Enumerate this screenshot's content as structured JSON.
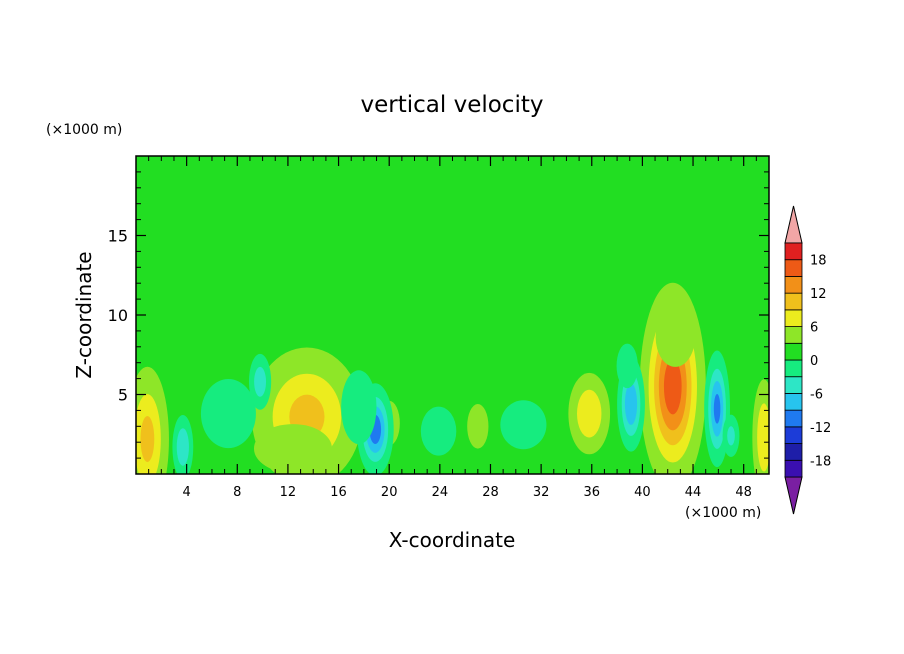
{
  "chart_data": {
    "type": "heatmap",
    "title": "vertical velocity",
    "xlabel": "X-coordinate",
    "ylabel": "Z-coordinate",
    "x_unit": "(×1000 m)",
    "y_unit": "(×1000 m)",
    "xlim": [
      0,
      50
    ],
    "ylim": [
      0,
      20
    ],
    "x_ticks": [
      4,
      8,
      12,
      16,
      20,
      24,
      28,
      32,
      36,
      40,
      44,
      48
    ],
    "x_tick_labels": [
      "4",
      "8",
      "12",
      "16",
      "20",
      "24",
      "28",
      "32",
      "36",
      "40",
      "44",
      "48"
    ],
    "y_ticks": [
      5,
      10,
      15
    ],
    "y_tick_labels": [
      "5",
      "10",
      "15"
    ],
    "colorbar": {
      "levels": [
        -21,
        -18,
        -15,
        -12,
        -9,
        -6,
        -3,
        0,
        3,
        6,
        9,
        12,
        15,
        18,
        21
      ],
      "tick_values": [
        -18,
        -12,
        -6,
        0,
        6,
        12,
        18
      ],
      "tick_labels": [
        "-18",
        "-12",
        "-6",
        "0",
        "6",
        "12",
        "18"
      ],
      "colors": [
        "#7a1fa2",
        "#3a0fb0",
        "#1e1ea8",
        "#1c3cd8",
        "#1f7af0",
        "#27c4ee",
        "#2de6c6",
        "#16ec7f",
        "#22de22",
        "#8ee628",
        "#ecec1e",
        "#f0c01c",
        "#f29018",
        "#ee5a16",
        "#e02020",
        "#f2a6a6"
      ],
      "extend": "both"
    },
    "background_value": 1,
    "features": [
      {
        "x": 0.9,
        "z": 2.2,
        "value": 9,
        "sx": 0.9,
        "sz": 2.4
      },
      {
        "x": 13.5,
        "z": 3.6,
        "value": 9,
        "sx": 2.3,
        "sz": 2.3
      },
      {
        "x": 12.4,
        "z": 1.6,
        "value": 4,
        "sx": 2.2,
        "sz": 1.1
      },
      {
        "x": 20.0,
        "z": 3.2,
        "value": 4,
        "sx": 0.6,
        "sz": 1.0
      },
      {
        "x": 27.0,
        "z": 3.0,
        "value": 4,
        "sx": 0.6,
        "sz": 1.0
      },
      {
        "x": 35.8,
        "z": 3.8,
        "value": 8,
        "sx": 0.9,
        "sz": 1.4
      },
      {
        "x": 42.4,
        "z": 5.5,
        "value": 16,
        "sx": 1.2,
        "sz": 3.0
      },
      {
        "x": 42.6,
        "z": 8.6,
        "value": 5,
        "sx": 1.0,
        "sz": 1.2
      },
      {
        "x": 49.6,
        "z": 2.3,
        "value": 8,
        "sx": 0.5,
        "sz": 2.0
      },
      {
        "x": 3.7,
        "z": 1.7,
        "value": -8,
        "sx": 0.45,
        "sz": 1.1
      },
      {
        "x": 7.3,
        "z": 3.8,
        "value": -5,
        "sx": 1.4,
        "sz": 1.4
      },
      {
        "x": 9.8,
        "z": 5.8,
        "value": -7,
        "sx": 0.5,
        "sz": 1.0
      },
      {
        "x": 18.9,
        "z": 2.8,
        "value": -13,
        "sx": 0.7,
        "sz": 1.4
      },
      {
        "x": 17.6,
        "z": 4.2,
        "value": -5,
        "sx": 0.9,
        "sz": 1.5
      },
      {
        "x": 23.9,
        "z": 2.7,
        "value": -4,
        "sx": 1.0,
        "sz": 1.1
      },
      {
        "x": 30.6,
        "z": 3.1,
        "value": -4,
        "sx": 1.3,
        "sz": 1.1
      },
      {
        "x": 39.1,
        "z": 4.4,
        "value": -11,
        "sx": 0.55,
        "sz": 1.5
      },
      {
        "x": 38.8,
        "z": 6.8,
        "value": -4,
        "sx": 0.6,
        "sz": 1.0
      },
      {
        "x": 45.9,
        "z": 4.1,
        "value": -12,
        "sx": 0.5,
        "sz": 1.8
      },
      {
        "x": 47.0,
        "z": 2.4,
        "value": -6,
        "sx": 0.4,
        "sz": 0.8
      }
    ]
  }
}
